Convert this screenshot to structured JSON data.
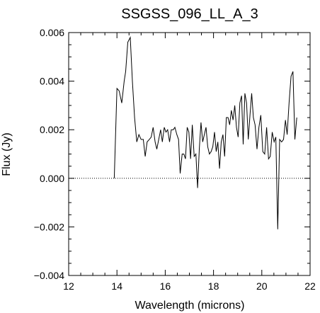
{
  "chart_data": {
    "type": "line",
    "title": "SSGSS_096_LL_A_3",
    "xlabel": "Wavelength (microns)",
    "ylabel": "Flux (Jy)",
    "xlim": [
      12,
      22
    ],
    "ylim": [
      -0.004,
      0.006
    ],
    "x_ticks": [
      12,
      14,
      16,
      18,
      20,
      22
    ],
    "x_tick_labels": [
      "12",
      "14",
      "16",
      "18",
      "20",
      "22"
    ],
    "y_ticks": [
      -0.004,
      -0.002,
      0.0,
      0.002,
      0.004,
      0.006
    ],
    "y_tick_labels": [
      "−0.004",
      "−0.002",
      "0.000",
      "0.002",
      "0.004",
      "0.006"
    ],
    "zero_line": {
      "y": 0.0,
      "style": "dotted"
    },
    "grid": false,
    "series": [
      {
        "x": [
          13.89,
          14.0,
          14.09,
          14.2,
          14.3,
          14.36,
          14.45,
          14.55,
          14.64,
          14.73,
          14.82,
          14.91,
          15.0,
          15.09,
          15.17,
          15.25,
          15.34,
          15.42,
          15.5,
          15.58,
          15.65,
          15.73,
          15.81,
          15.88,
          15.96,
          16.03,
          16.1,
          16.18,
          16.25,
          16.33,
          16.4,
          16.48,
          16.55,
          16.62,
          16.7,
          16.77,
          16.84,
          16.91,
          16.98,
          17.05,
          17.12,
          17.2,
          17.27,
          17.34,
          17.41,
          17.48,
          17.55,
          17.62,
          17.69,
          17.76,
          17.83,
          17.9,
          17.97,
          18.04,
          18.11,
          18.18,
          18.25,
          18.32,
          18.39,
          18.46,
          18.53,
          18.6,
          18.67,
          18.74,
          18.81,
          18.88,
          18.95,
          19.02,
          19.09,
          19.16,
          19.23,
          19.3,
          19.37,
          19.44,
          19.51,
          19.58,
          19.65,
          19.72,
          19.8,
          19.88,
          19.96,
          20.04,
          20.12,
          20.2,
          20.28,
          20.35,
          20.43,
          20.51,
          20.58,
          20.66,
          20.74,
          20.82,
          20.9,
          20.98,
          21.05,
          21.13,
          21.21,
          21.29,
          21.37,
          21.45
        ],
        "values": [
          0.0,
          0.0037,
          0.0036,
          0.0031,
          0.004,
          0.0044,
          0.0056,
          0.0058,
          0.004,
          0.0025,
          0.0015,
          0.0018,
          0.0016,
          0.0016,
          0.0009,
          0.0015,
          0.0016,
          0.0017,
          0.0021,
          0.0015,
          0.0012,
          0.0016,
          0.002,
          0.0015,
          0.0021,
          0.0019,
          0.002,
          0.0015,
          0.002,
          0.002,
          0.0021,
          0.0018,
          0.0016,
          0.0002,
          0.001,
          0.001,
          0.0008,
          0.0021,
          0.0019,
          0.0008,
          0.0022,
          0.0009,
          0.001,
          -0.0004,
          0.0012,
          0.0023,
          0.0015,
          0.0018,
          0.0021,
          0.0013,
          0.001,
          0.0011,
          0.0013,
          0.0019,
          0.0011,
          0.0015,
          0.0004,
          0.0015,
          0.0018,
          0.0009,
          0.0025,
          0.0025,
          0.0022,
          0.0028,
          0.0024,
          0.003,
          0.0021,
          0.0017,
          0.0031,
          0.0034,
          0.0014,
          0.0035,
          0.0031,
          0.0016,
          0.0026,
          0.0035,
          0.0025,
          0.0022,
          0.0012,
          0.0021,
          0.0026,
          0.0011,
          0.001,
          0.0021,
          0.0008,
          0.0009,
          0.0019,
          0.0015,
          0.0017,
          -0.0021,
          0.0016,
          0.0015,
          0.0016,
          0.0024,
          0.0018,
          0.0031,
          0.0042,
          0.0044,
          0.0016,
          0.0025
        ]
      }
    ]
  }
}
